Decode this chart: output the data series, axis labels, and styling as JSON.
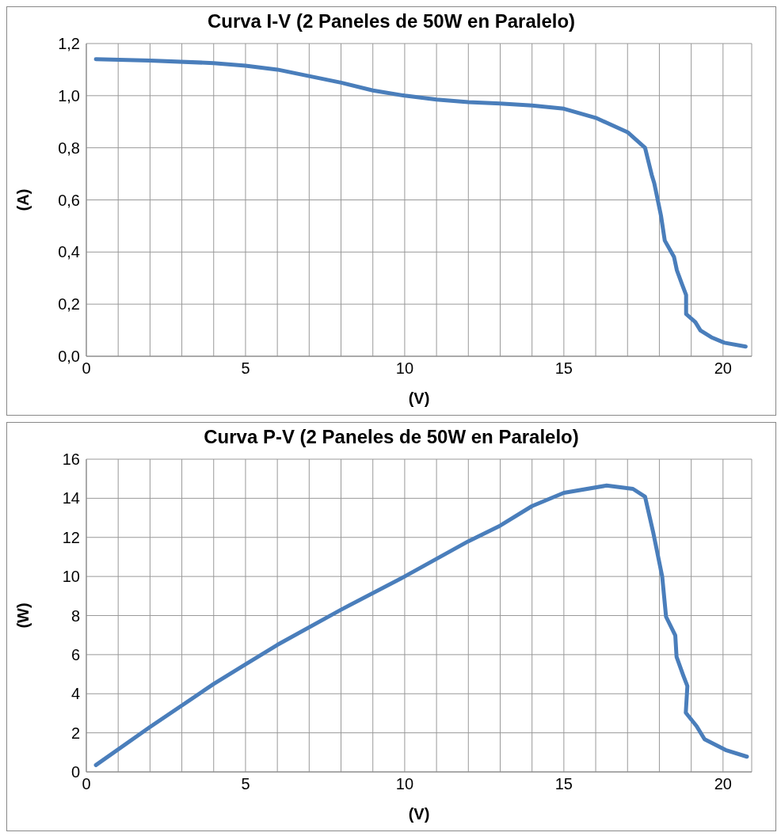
{
  "chart_data": [
    {
      "type": "line",
      "title": "Curva I-V (2 Paneles de 50W en Paralelo)",
      "xlabel": "(V)",
      "ylabel": "(A)",
      "grid": true,
      "marker": "none",
      "line_style": "solid",
      "xlim": [
        0,
        20.9
      ],
      "ylim": [
        0,
        1.2
      ],
      "xticks": [
        0,
        {
          "value": 1,
          "label": null
        },
        {
          "value": 2,
          "label": null
        },
        {
          "value": 3,
          "label": null
        },
        {
          "value": 4,
          "label": null
        },
        5,
        {
          "value": 6,
          "label": null
        },
        {
          "value": 7,
          "label": null
        },
        {
          "value": 8,
          "label": null
        },
        {
          "value": 9,
          "label": null
        },
        10,
        {
          "value": 11,
          "label": null
        },
        {
          "value": 12,
          "label": null
        },
        {
          "value": 13,
          "label": null
        },
        {
          "value": 14,
          "label": null
        },
        15,
        {
          "value": 16,
          "label": null
        },
        {
          "value": 17,
          "label": null
        },
        {
          "value": 18,
          "label": null
        },
        {
          "value": 19,
          "label": null
        },
        20
      ],
      "yticks": [
        {
          "value": 0,
          "label": "0,0"
        },
        {
          "value": 0.2,
          "label": "0,2"
        },
        {
          "value": 0.4,
          "label": "0,4"
        },
        {
          "value": 0.6,
          "label": "0,6"
        },
        {
          "value": 0.8,
          "label": "0,8"
        },
        {
          "value": 1.0,
          "label": "1,0"
        },
        {
          "value": 1.2,
          "label": "1,2"
        }
      ],
      "x": [
        0.3,
        2,
        4,
        5,
        6,
        7,
        8,
        9,
        10,
        11,
        12,
        13,
        14,
        15,
        16,
        17,
        17.55,
        17.76,
        17.84,
        18.05,
        18.17,
        18.46,
        18.55,
        18.71,
        18.84,
        18.84,
        19.13,
        19.29,
        19.63,
        20.04,
        20.71
      ],
      "series": [
        {
          "color": "#4a7ebb",
          "values": [
            1.14,
            1.135,
            1.125,
            1.115,
            1.1,
            1.075,
            1.05,
            1.02,
            1.0,
            0.985,
            0.975,
            0.97,
            0.962,
            0.95,
            0.915,
            0.86,
            0.8,
            0.696,
            0.664,
            0.54,
            0.444,
            0.381,
            0.33,
            0.277,
            0.235,
            0.162,
            0.131,
            0.099,
            0.073,
            0.052,
            0.037
          ]
        }
      ]
    },
    {
      "type": "line",
      "title": "Curva P-V (2 Paneles de 50W en Paralelo)",
      "xlabel": "(V)",
      "ylabel": "(W)",
      "grid": true,
      "marker": "none",
      "line_style": "solid",
      "xlim": [
        0,
        20.9
      ],
      "ylim": [
        0,
        16
      ],
      "xticks": [
        0,
        {
          "value": 1,
          "label": null
        },
        {
          "value": 2,
          "label": null
        },
        {
          "value": 3,
          "label": null
        },
        {
          "value": 4,
          "label": null
        },
        5,
        {
          "value": 6,
          "label": null
        },
        {
          "value": 7,
          "label": null
        },
        {
          "value": 8,
          "label": null
        },
        {
          "value": 9,
          "label": null
        },
        10,
        {
          "value": 11,
          "label": null
        },
        {
          "value": 12,
          "label": null
        },
        {
          "value": 13,
          "label": null
        },
        {
          "value": 14,
          "label": null
        },
        15,
        {
          "value": 16,
          "label": null
        },
        {
          "value": 17,
          "label": null
        },
        {
          "value": 18,
          "label": null
        },
        {
          "value": 19,
          "label": null
        },
        20
      ],
      "yticks": [
        0,
        2,
        4,
        6,
        8,
        10,
        12,
        14,
        16
      ],
      "x": [
        0.3,
        2,
        4,
        5,
        6,
        8,
        10,
        12,
        13,
        14,
        15,
        16.34,
        17.17,
        17.55,
        17.8,
        18.09,
        18.21,
        18.5,
        18.54,
        18.75,
        18.88,
        18.83,
        19.17,
        19.42,
        20.08,
        20.75
      ],
      "series": [
        {
          "color": "#4a7ebb",
          "values": [
            0.35,
            2.3,
            4.5,
            5.5,
            6.5,
            8.3,
            10,
            11.8,
            12.6,
            13.6,
            14.28,
            14.65,
            14.48,
            14.08,
            12.3,
            9.98,
            7.94,
            6.98,
            5.89,
            4.94,
            4.39,
            3.03,
            2.34,
            1.67,
            1.12,
            0.78
          ]
        }
      ]
    }
  ]
}
